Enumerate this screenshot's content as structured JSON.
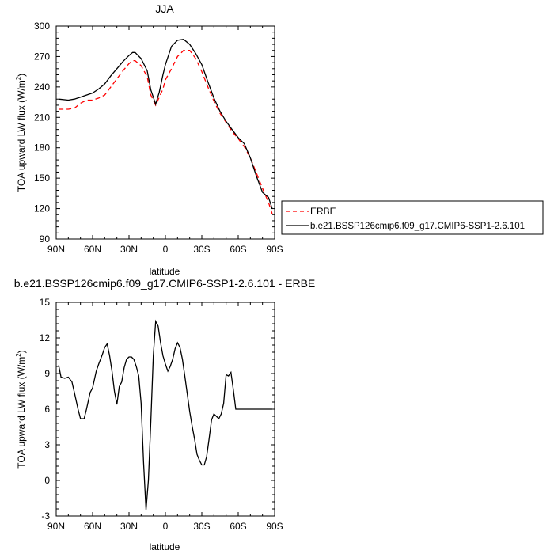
{
  "chart_data": [
    {
      "type": "line",
      "title": "JJA",
      "xlabel": "latitude",
      "ylabel": "TOA upward LW flux (W/m²)",
      "ylabel_parts": {
        "main": "TOA upward LW flux (W/m",
        "sup": "2",
        "end": ")"
      },
      "xlim": [
        90,
        -90
      ],
      "ylim": [
        90,
        300
      ],
      "xticks": [
        {
          "value": 90,
          "label": "90N"
        },
        {
          "value": 60,
          "label": "60N"
        },
        {
          "value": 30,
          "label": "30N"
        },
        {
          "value": 0,
          "label": "0"
        },
        {
          "value": -30,
          "label": "30S"
        },
        {
          "value": -60,
          "label": "60S"
        },
        {
          "value": -90,
          "label": "90S"
        }
      ],
      "yticks": [
        90,
        120,
        150,
        180,
        210,
        240,
        270,
        300
      ],
      "legend": {
        "placement": "right"
      },
      "series": [
        {
          "name": "ERBE",
          "color": "#ff0000",
          "dash": "dashed",
          "x": [
            88,
            80,
            75,
            70,
            65,
            60,
            55,
            50,
            45,
            40,
            35,
            30,
            27,
            25,
            20,
            15,
            12,
            8,
            5,
            2,
            0,
            -5,
            -10,
            -15,
            -20,
            -25,
            -30,
            -35,
            -40,
            -45,
            -50,
            -55,
            -60,
            -65,
            -70,
            -75,
            -80,
            -85,
            -88
          ],
          "y": [
            218,
            218,
            219,
            224,
            227,
            227,
            229,
            232,
            240,
            248,
            256,
            263,
            266,
            266,
            261,
            250,
            232,
            222,
            230,
            238,
            247,
            258,
            270,
            276,
            276,
            268,
            255,
            240,
            226,
            214,
            205,
            196,
            189,
            181,
            170,
            155,
            140,
            126,
            115
          ]
        },
        {
          "name": "b.e21.BSSP126cmip6.f09_g17.CMIP6-SSP1-2.6.101",
          "color": "#000000",
          "dash": "solid",
          "x": [
            88,
            80,
            75,
            70,
            65,
            60,
            55,
            50,
            45,
            40,
            35,
            30,
            27,
            25,
            20,
            15,
            12,
            8,
            5,
            2,
            0,
            -5,
            -10,
            -15,
            -20,
            -25,
            -30,
            -35,
            -40,
            -45,
            -50,
            -55,
            -60,
            -65,
            -70,
            -75,
            -80,
            -85,
            -88
          ],
          "y": [
            228,
            227,
            228,
            230,
            232,
            234,
            238,
            243,
            251,
            258,
            265,
            271,
            274,
            274,
            268,
            256,
            237,
            223,
            235,
            252,
            262,
            280,
            286,
            287,
            282,
            273,
            262,
            245,
            229,
            216,
            206,
            198,
            190,
            184,
            170,
            152,
            136,
            131,
            120
          ]
        }
      ]
    },
    {
      "type": "line",
      "title": "b.e21.BSSP126cmip6.f09_g17.CMIP6-SSP1-2.6.101 - ERBE",
      "xlabel": "latitude",
      "ylabel": "TOA upward LW flux (W/m²)",
      "ylabel_parts": {
        "main": "TOA upward LW flux (W/m",
        "sup": "2",
        "end": ")"
      },
      "xlim": [
        90,
        -90
      ],
      "ylim": [
        -3,
        15
      ],
      "xticks": [
        {
          "value": 90,
          "label": "90N"
        },
        {
          "value": 60,
          "label": "60N"
        },
        {
          "value": 30,
          "label": "30N"
        },
        {
          "value": 0,
          "label": "0"
        },
        {
          "value": -30,
          "label": "30S"
        },
        {
          "value": -60,
          "label": "60S"
        },
        {
          "value": -90,
          "label": "90S"
        }
      ],
      "yticks": [
        -3,
        0,
        3,
        6,
        9,
        12,
        15
      ],
      "series": [
        {
          "color": "#000000",
          "dash": "solid",
          "x": [
            88,
            86,
            83,
            80,
            77,
            75,
            72,
            70,
            67,
            65,
            62,
            60,
            57,
            55,
            52,
            50,
            48,
            46,
            44,
            42,
            40,
            38,
            36,
            34,
            32,
            30,
            28,
            26,
            24,
            22,
            20,
            18,
            16,
            14,
            12,
            10,
            8,
            6,
            4,
            2,
            0,
            -2,
            -4,
            -6,
            -8,
            -10,
            -12,
            -14,
            -16,
            -18,
            -20,
            -22,
            -24,
            -26,
            -28,
            -30,
            -32,
            -34,
            -36,
            -38,
            -40,
            -42,
            -44,
            -46,
            -48,
            -50,
            -52,
            -54,
            -56,
            -58,
            -60,
            -62,
            -64,
            -66,
            -68,
            -70,
            -72,
            -74,
            -76,
            -78,
            -80,
            -82,
            -84,
            -86,
            -88
          ],
          "y": [
            9.7,
            8.7,
            8.6,
            8.7,
            8.3,
            7.4,
            6.0,
            5.2,
            5.2,
            6.0,
            7.4,
            7.8,
            9.2,
            9.8,
            10.6,
            11.2,
            11.5,
            10.5,
            9.2,
            7.5,
            6.4,
            7.9,
            8.3,
            9.5,
            10.2,
            10.4,
            10.4,
            10.2,
            9.6,
            8.8,
            6.5,
            1.5,
            -2.5,
            0.0,
            5.0,
            10.5,
            13.4,
            13.0,
            11.6,
            10.5,
            9.8,
            9.2,
            9.6,
            10.2,
            11.1,
            11.6,
            11.2,
            10.2,
            8.8,
            7.3,
            5.8,
            4.6,
            3.5,
            2.2,
            1.7,
            1.3,
            1.3,
            2.0,
            3.5,
            5.1,
            5.6,
            5.4,
            5.2,
            5.6,
            6.5,
            8.9,
            8.8,
            9.1,
            7.6,
            6.0,
            6.0,
            6.0,
            6.0,
            6.0,
            6.0,
            6.0,
            6.0,
            6.0,
            6.0,
            6.0,
            6.0,
            6.0,
            6.0,
            6.0,
            6.0
          ]
        }
      ]
    }
  ]
}
